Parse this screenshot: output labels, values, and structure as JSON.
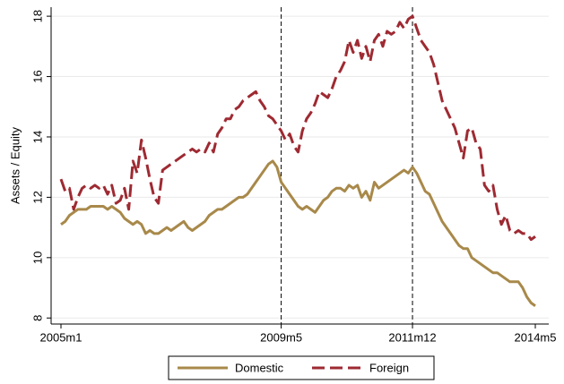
{
  "chart_data": {
    "type": "line",
    "ylabel": "Assets / Equity",
    "categories": [
      "2005m1",
      null,
      null,
      null,
      null,
      null,
      null,
      null,
      null,
      null,
      null,
      null,
      null,
      null,
      null,
      null,
      null,
      null,
      null,
      null,
      null,
      null,
      null,
      null,
      null,
      null,
      null,
      null,
      null,
      null,
      null,
      null,
      null,
      null,
      null,
      null,
      null,
      null,
      null,
      null,
      null,
      null,
      null,
      null,
      null,
      null,
      null,
      null,
      null,
      null,
      null,
      null,
      "2009m5",
      null,
      null,
      null,
      null,
      null,
      null,
      null,
      null,
      null,
      null,
      null,
      null,
      null,
      null,
      null,
      null,
      null,
      null,
      null,
      null,
      null,
      null,
      null,
      null,
      null,
      null,
      null,
      null,
      null,
      null,
      "2011m12",
      null,
      null,
      null,
      null,
      null,
      null,
      null,
      null,
      null,
      null,
      null,
      null,
      null,
      null,
      null,
      null,
      null,
      null,
      null,
      null,
      null,
      null,
      null,
      null,
      null,
      null,
      null,
      null,
      "2014m5"
    ],
    "series": [
      {
        "name": "Domestic",
        "color": "#a8894a",
        "style": "solid",
        "values": [
          11.1,
          11.2,
          11.4,
          11.5,
          11.6,
          11.6,
          11.6,
          11.7,
          11.7,
          11.7,
          11.7,
          11.6,
          11.7,
          11.6,
          11.5,
          11.3,
          11.2,
          11.1,
          11.2,
          11.1,
          10.8,
          10.9,
          10.8,
          10.8,
          10.9,
          11.0,
          10.9,
          11.0,
          11.1,
          11.2,
          11.0,
          10.9,
          11.0,
          11.1,
          11.2,
          11.4,
          11.5,
          11.6,
          11.6,
          11.7,
          11.8,
          11.9,
          12.0,
          12.0,
          12.1,
          12.3,
          12.5,
          12.7,
          12.9,
          13.1,
          13.2,
          13.0,
          12.5,
          12.3,
          12.1,
          11.9,
          11.7,
          11.6,
          11.7,
          11.6,
          11.5,
          11.7,
          11.9,
          12.0,
          12.2,
          12.3,
          12.3,
          12.2,
          12.4,
          12.3,
          12.4,
          12.0,
          12.2,
          11.9,
          12.5,
          12.3,
          12.4,
          12.5,
          12.6,
          12.7,
          12.8,
          12.9,
          12.8,
          13.0,
          12.8,
          12.5,
          12.2,
          12.1,
          11.8,
          11.5,
          11.2,
          11.0,
          10.8,
          10.6,
          10.4,
          10.3,
          10.3,
          10.0,
          9.9,
          9.8,
          9.7,
          9.6,
          9.5,
          9.5,
          9.4,
          9.3,
          9.2,
          9.2,
          9.2,
          9.0,
          8.7,
          8.5,
          8.4
        ]
      },
      {
        "name": "Foreign",
        "color": "#9e2a32",
        "style": "dashed",
        "values": [
          12.6,
          12.2,
          12.3,
          11.6,
          12.0,
          12.3,
          12.4,
          12.3,
          12.4,
          12.3,
          12.4,
          12.1,
          12.4,
          11.8,
          11.9,
          12.3,
          11.6,
          13.2,
          12.8,
          13.9,
          13.3,
          12.6,
          12.0,
          11.8,
          12.9,
          13.0,
          13.1,
          13.2,
          13.3,
          13.4,
          13.5,
          13.6,
          13.5,
          13.6,
          13.5,
          13.8,
          13.5,
          14.1,
          14.3,
          14.6,
          14.6,
          14.9,
          15.0,
          15.2,
          15.3,
          15.4,
          15.5,
          15.2,
          15.0,
          14.7,
          14.6,
          14.4,
          14.2,
          13.9,
          14.1,
          13.7,
          13.5,
          14.2,
          14.6,
          14.8,
          15.1,
          15.5,
          15.4,
          15.3,
          15.6,
          16.0,
          16.2,
          16.5,
          17.2,
          16.8,
          17.2,
          16.6,
          17.0,
          16.5,
          17.2,
          17.4,
          17.0,
          17.5,
          17.4,
          17.5,
          17.8,
          17.6,
          17.9,
          18.0,
          17.6,
          17.2,
          17.0,
          16.8,
          16.4,
          15.8,
          15.2,
          14.9,
          14.6,
          14.3,
          13.8,
          13.3,
          14.2,
          14.3,
          13.8,
          13.6,
          12.4,
          12.2,
          12.4,
          11.6,
          11.1,
          11.4,
          10.9,
          10.8,
          10.9,
          10.8,
          10.8,
          10.6,
          10.7
        ]
      }
    ],
    "vlines": [
      "2009m5",
      "2011m12"
    ],
    "ylim": [
      7.8,
      18.3
    ],
    "yticks": [
      8,
      10,
      12,
      14,
      16,
      18
    ],
    "grid": true,
    "legend": "bottom"
  }
}
